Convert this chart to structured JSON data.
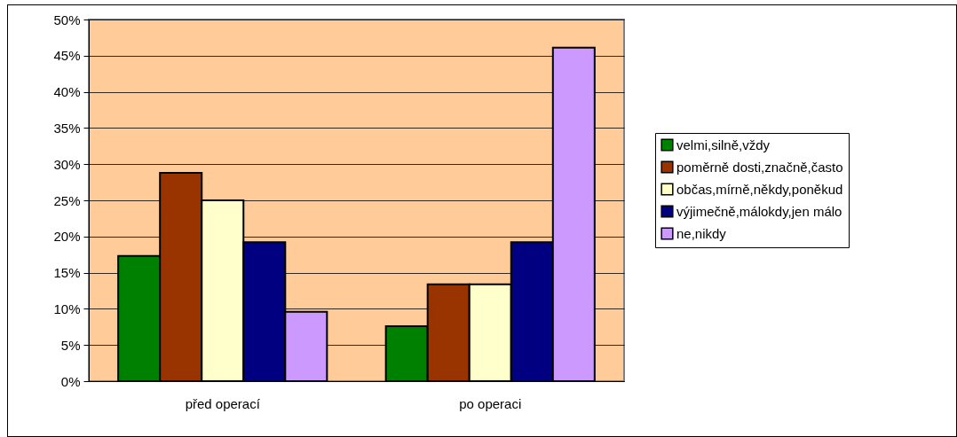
{
  "chart_data": {
    "type": "bar",
    "categories": [
      "před operací",
      "po operaci"
    ],
    "series": [
      {
        "name": "velmi,silně,vždy",
        "color": "#008000",
        "values": [
          17.3,
          7.6
        ]
      },
      {
        "name": "poměrně dosti,značně,často",
        "color": "#993300",
        "values": [
          28.8,
          13.4
        ]
      },
      {
        "name": "občas,mírně,někdy,poněkud",
        "color": "#ffffcc",
        "values": [
          25.0,
          13.4
        ]
      },
      {
        "name": "výjimečně,málokdy,jen málo",
        "color": "#000080",
        "values": [
          19.2,
          19.2
        ]
      },
      {
        "name": "ne,nikdy",
        "color": "#cc99ff",
        "values": [
          9.6,
          46.1
        ]
      }
    ],
    "ylim": [
      0,
      50
    ],
    "yticks": [
      {
        "value": 0,
        "label": "0%"
      },
      {
        "value": 5,
        "label": "5%"
      },
      {
        "value": 10,
        "label": "10%"
      },
      {
        "value": 15,
        "label": "15%"
      },
      {
        "value": 20,
        "label": "20%"
      },
      {
        "value": 25,
        "label": "25%"
      },
      {
        "value": 30,
        "label": "30%"
      },
      {
        "value": 35,
        "label": "35%"
      },
      {
        "value": 40,
        "label": "40%"
      },
      {
        "value": 45,
        "label": "45%"
      },
      {
        "value": 50,
        "label": "50%"
      }
    ],
    "grid": "y",
    "legend": "right"
  }
}
